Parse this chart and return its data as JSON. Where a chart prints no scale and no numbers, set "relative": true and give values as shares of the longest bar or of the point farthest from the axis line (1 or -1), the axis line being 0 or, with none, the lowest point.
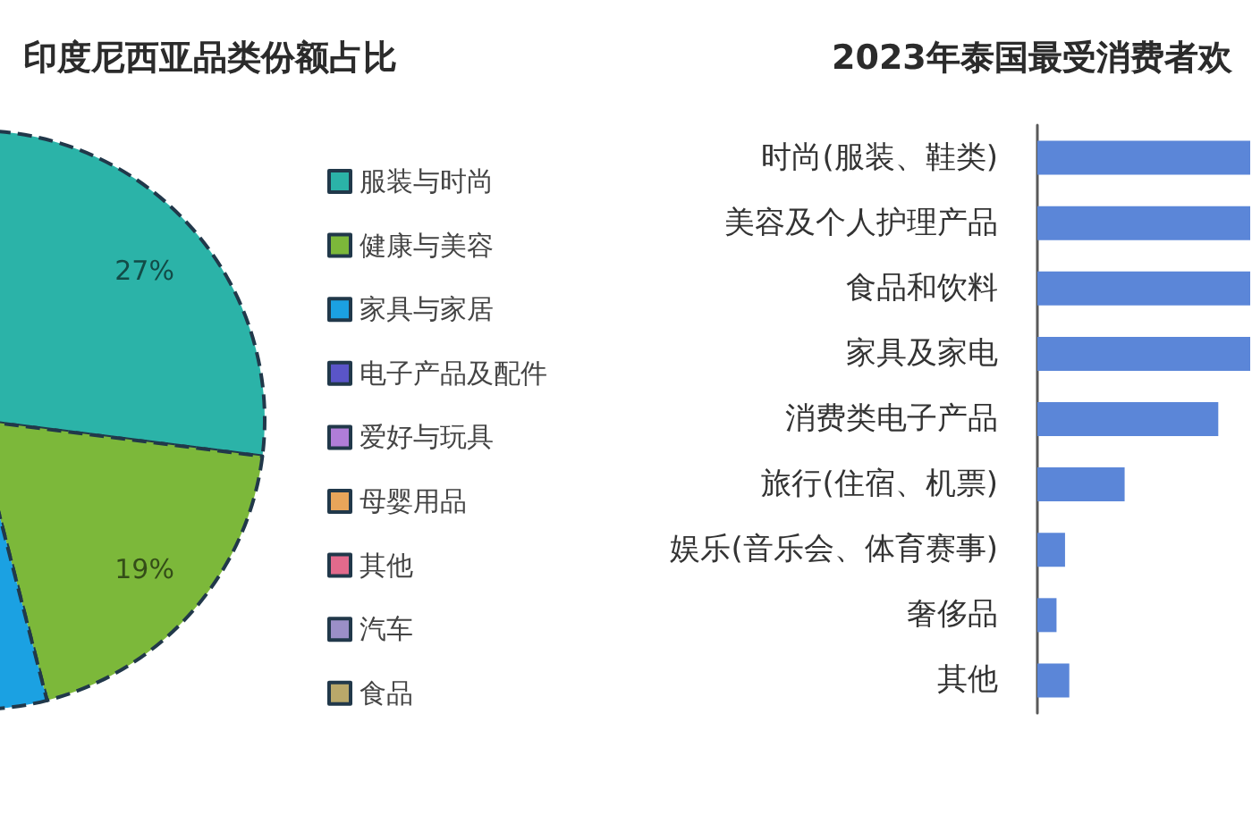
{
  "chart_data": [
    {
      "type": "pie",
      "title": "印度尼西亚品类份额占比",
      "categories": [
        "服装与时尚",
        "健康与美容",
        "家具与家居",
        "电子产品及配件",
        "爱好与玩具",
        "母婴用品",
        "其他",
        "汽车",
        "食品"
      ],
      "values": [
        27,
        19,
        4,
        null,
        null,
        null,
        null,
        null,
        null
      ],
      "value_labels": [
        "27%",
        "19%",
        null,
        null,
        null,
        null,
        null,
        null,
        null
      ],
      "colors": [
        "#2bb3a8",
        "#7cb83a",
        "#1ba1e2",
        "#5a55c8",
        "#b07dd8",
        "#e8a55a",
        "#e26a8c",
        "#9b8fc7",
        "#b9a86a"
      ],
      "legend": "right"
    },
    {
      "type": "bar",
      "orientation": "horizontal",
      "relative": true,
      "title": "2023年泰国最受消费者欢",
      "categories": [
        "时尚(服装、鞋类)",
        "美容及个人护理产品",
        "食品和饮料",
        "家具及家电",
        "消费类电子产品",
        "旅行(住宿、机票)",
        "娱乐(音乐会、体育赛事)",
        "奢侈品",
        "其他"
      ],
      "values": [
        1,
        1,
        1,
        1,
        0.85,
        0.41,
        0.13,
        0.09,
        0.15
      ],
      "color": "#5b86d8"
    }
  ]
}
